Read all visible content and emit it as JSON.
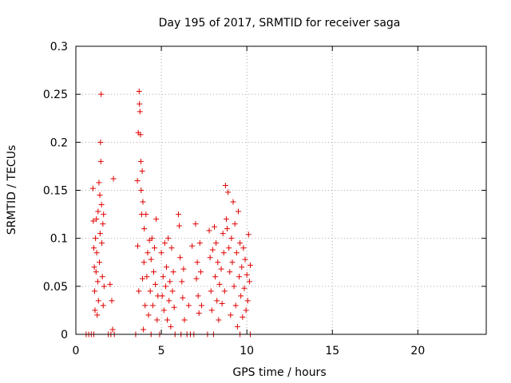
{
  "chart_data": {
    "type": "scatter",
    "title": "Day 195 of 2017, SRMTID for receiver saga",
    "xlabel": "GPS time / hours",
    "ylabel": "SRMTID / TECUs",
    "xlim": [
      0,
      24
    ],
    "ylim": [
      0,
      0.3
    ],
    "xticks": [
      0,
      5,
      10,
      15,
      20
    ],
    "xtick_labels": [
      "0",
      "5",
      "10",
      "15",
      "20"
    ],
    "yticks": [
      0,
      0.05,
      0.1,
      0.15,
      0.2,
      0.25,
      0.3
    ],
    "ytick_labels": [
      "0",
      "0.05",
      "0.1",
      "0.15",
      "0.2",
      "0.25",
      "0.3"
    ],
    "grid": true,
    "marker": "+",
    "series": [
      {
        "name": "SRMTID",
        "color": "#e00000",
        "points": [
          [
            0.6,
            0
          ],
          [
            0.75,
            0
          ],
          [
            0.9,
            0
          ],
          [
            1.05,
            0
          ],
          [
            1.0,
            0.152
          ],
          [
            1.02,
            0.118
          ],
          [
            1.05,
            0.09
          ],
          [
            1.08,
            0.07
          ],
          [
            1.1,
            0.045
          ],
          [
            1.12,
            0.025
          ],
          [
            1.15,
            0.1
          ],
          [
            1.18,
            0.065
          ],
          [
            1.2,
            0.12
          ],
          [
            1.22,
            0.085
          ],
          [
            1.25,
            0.02
          ],
          [
            1.28,
            0.055
          ],
          [
            1.3,
            0.128
          ],
          [
            1.32,
            0.035
          ],
          [
            1.35,
            0.158
          ],
          [
            1.38,
            0.075
          ],
          [
            1.4,
            0.145
          ],
          [
            1.42,
            0.105
          ],
          [
            1.44,
            0.2
          ],
          [
            1.46,
            0.18
          ],
          [
            1.48,
            0.25
          ],
          [
            1.5,
            0.135
          ],
          [
            1.52,
            0.095
          ],
          [
            1.55,
            0.06
          ],
          [
            1.58,
            0.115
          ],
          [
            1.6,
            0.03
          ],
          [
            1.62,
            0.125
          ],
          [
            1.65,
            0.05
          ],
          [
            1.9,
            0
          ],
          [
            2.0,
            0.052
          ],
          [
            2.05,
            0
          ],
          [
            2.1,
            0.035
          ],
          [
            2.15,
            0.005
          ],
          [
            2.2,
            0.162
          ],
          [
            2.25,
            0
          ],
          [
            3.5,
            0
          ],
          [
            3.6,
            0.16
          ],
          [
            3.62,
            0.092
          ],
          [
            3.65,
            0.21
          ],
          [
            3.68,
            0.045
          ],
          [
            3.7,
            0.253
          ],
          [
            3.72,
            0.24
          ],
          [
            3.75,
            0.232
          ],
          [
            3.78,
            0.208
          ],
          [
            3.8,
            0.18
          ],
          [
            3.82,
            0.15
          ],
          [
            3.85,
            0.125
          ],
          [
            3.88,
            0.17
          ],
          [
            3.9,
            0.058
          ],
          [
            3.92,
            0.138
          ],
          [
            3.95,
            0.005
          ],
          [
            3.98,
            0.075
          ],
          [
            4.0,
            0.11
          ],
          [
            4.05,
            0.03
          ],
          [
            4.1,
            0.125
          ],
          [
            4.15,
            0.06
          ],
          [
            4.2,
            0.085
          ],
          [
            4.25,
            0.02
          ],
          [
            4.3,
            0.098
          ],
          [
            4.35,
            0.045
          ],
          [
            4.4,
            0.078
          ],
          [
            4.45,
            0.1
          ],
          [
            4.5,
            0.03
          ],
          [
            4.55,
            0.065
          ],
          [
            4.6,
            0.09
          ],
          [
            4.65,
            0.052
          ],
          [
            4.7,
            0.12
          ],
          [
            4.75,
            0.015
          ],
          [
            4.8,
            0.04
          ],
          [
            4.4,
            0
          ],
          [
            4.9,
            0
          ],
          [
            5.0,
            0.085
          ],
          [
            5.05,
            0.04
          ],
          [
            5.1,
            0.06
          ],
          [
            5.15,
            0.025
          ],
          [
            5.2,
            0.095
          ],
          [
            5.25,
            0.05
          ],
          [
            5.3,
            0.07
          ],
          [
            5.35,
            0.015
          ],
          [
            5.4,
            0.1
          ],
          [
            5.45,
            0.035
          ],
          [
            5.5,
            0.055
          ],
          [
            5.55,
            0.008
          ],
          [
            5.6,
            0.09
          ],
          [
            5.65,
            0.045
          ],
          [
            5.7,
            0.065
          ],
          [
            5.75,
            0.028
          ],
          [
            5.8,
            0
          ],
          [
            6.0,
            0.125
          ],
          [
            6.05,
            0.113
          ],
          [
            6.1,
            0.08
          ],
          [
            6.15,
            0
          ],
          [
            6.2,
            0.055
          ],
          [
            6.25,
            0.038
          ],
          [
            6.3,
            0.068
          ],
          [
            6.35,
            0.015
          ],
          [
            6.5,
            0
          ],
          [
            6.6,
            0.03
          ],
          [
            6.7,
            0
          ],
          [
            6.8,
            0.092
          ],
          [
            6.9,
            0
          ],
          [
            7.0,
            0.115
          ],
          [
            7.05,
            0.058
          ],
          [
            7.1,
            0.075
          ],
          [
            7.15,
            0.04
          ],
          [
            7.2,
            0.022
          ],
          [
            7.25,
            0.095
          ],
          [
            7.3,
            0.065
          ],
          [
            7.35,
            0.03
          ],
          [
            7.7,
            0
          ],
          [
            7.8,
            0.108
          ],
          [
            7.85,
            0.08
          ],
          [
            7.9,
            0.045
          ],
          [
            7.95,
            0.025
          ],
          [
            8.0,
            0.088
          ],
          [
            8.05,
            0
          ],
          [
            8.1,
            0.112
          ],
          [
            8.15,
            0.06
          ],
          [
            8.2,
            0.095
          ],
          [
            8.25,
            0.035
          ],
          [
            8.3,
            0.075
          ],
          [
            8.35,
            0.015
          ],
          [
            8.4,
            0.052
          ],
          [
            8.5,
            0.068
          ],
          [
            8.55,
            0.032
          ],
          [
            8.6,
            0.105
          ],
          [
            8.65,
            0.085
          ],
          [
            8.7,
            0.045
          ],
          [
            8.75,
            0.155
          ],
          [
            8.8,
            0.12
          ],
          [
            8.85,
            0.11
          ],
          [
            8.9,
            0.148
          ],
          [
            8.95,
            0.09
          ],
          [
            9.0,
            0.065
          ],
          [
            9.05,
            0.02
          ],
          [
            9.1,
            0.1
          ],
          [
            9.15,
            0.075
          ],
          [
            9.2,
            0.138
          ],
          [
            9.25,
            0.05
          ],
          [
            9.3,
            0.115
          ],
          [
            9.35,
            0.03
          ],
          [
            9.4,
            0.085
          ],
          [
            9.45,
            0.008
          ],
          [
            9.5,
            0.128
          ],
          [
            9.55,
            0.06
          ],
          [
            9.6,
            0.095
          ],
          [
            9.65,
            0.04
          ],
          [
            9.7,
            0.07
          ],
          [
            9.75,
            0.018
          ],
          [
            9.8,
            0.09
          ],
          [
            9.85,
            0.048
          ],
          [
            9.9,
            0.078
          ],
          [
            9.95,
            0.025
          ],
          [
            10.0,
            0.062
          ],
          [
            10.05,
            0.035
          ],
          [
            10.1,
            0.104
          ],
          [
            10.15,
            0.055
          ],
          [
            10.2,
            0.072
          ],
          [
            9.6,
            0
          ],
          [
            10.2,
            0
          ]
        ]
      }
    ]
  }
}
